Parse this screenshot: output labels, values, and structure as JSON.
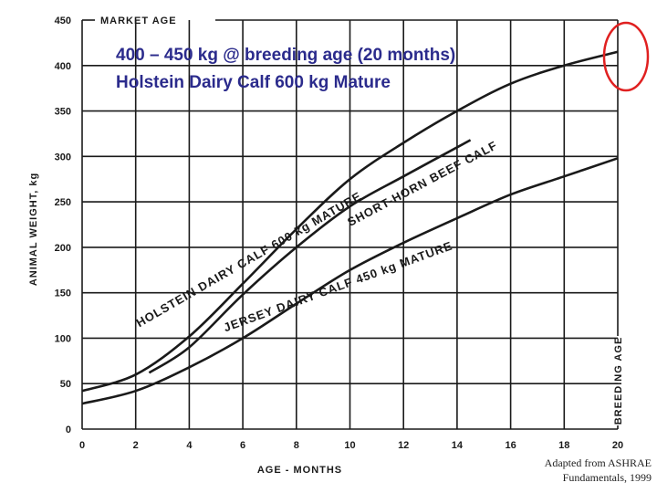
{
  "headline": {
    "line1": "400 – 450 kg @ breeding age (20 months)",
    "line2": "Holstein Dairy Calf 600 kg Mature"
  },
  "credit": {
    "line1": "Adapted from ASHRAE",
    "line2": "Fundamentals, 1999"
  },
  "colors": {
    "headline": "#2b2b8c",
    "highlight_circle": "#e02020",
    "ink": "#1a1a1a"
  },
  "chart_data": {
    "type": "line",
    "xlabel": "AGE - MONTHS",
    "ylabel": "ANIMAL WEIGHT, kg",
    "xlim": [
      0,
      20
    ],
    "ylim": [
      0,
      450
    ],
    "xticks": [
      0,
      2,
      4,
      6,
      8,
      10,
      12,
      14,
      16,
      18,
      20
    ],
    "yticks": [
      0,
      50,
      100,
      150,
      200,
      250,
      300,
      350,
      400,
      450
    ],
    "grid": true,
    "reference_lines": [
      {
        "label": "MARKET AGE",
        "orientation": "horizontal",
        "value": 450
      },
      {
        "label": "BREEDING AGE",
        "orientation": "vertical",
        "value": 20
      }
    ],
    "series": [
      {
        "name": "HOLSTEIN DAIRY CALF 600 kg MATURE",
        "x": [
          0,
          2,
          4,
          6,
          8,
          10,
          12,
          14,
          16,
          18,
          20
        ],
        "values": [
          42,
          60,
          102,
          160,
          220,
          275,
          315,
          350,
          380,
          400,
          415
        ]
      },
      {
        "name": "SHORT-HORN BEEF CALF",
        "x": [
          2.5,
          4,
          6,
          8,
          10,
          12,
          14.5
        ],
        "values": [
          62,
          90,
          148,
          200,
          245,
          278,
          318
        ]
      },
      {
        "name": "JERSEY DAIRY CALF 450 kg MATURE",
        "x": [
          0,
          2,
          4,
          6,
          8,
          10,
          12,
          14,
          16,
          18,
          20
        ],
        "values": [
          28,
          42,
          68,
          100,
          138,
          175,
          205,
          232,
          258,
          278,
          298
        ]
      }
    ]
  }
}
